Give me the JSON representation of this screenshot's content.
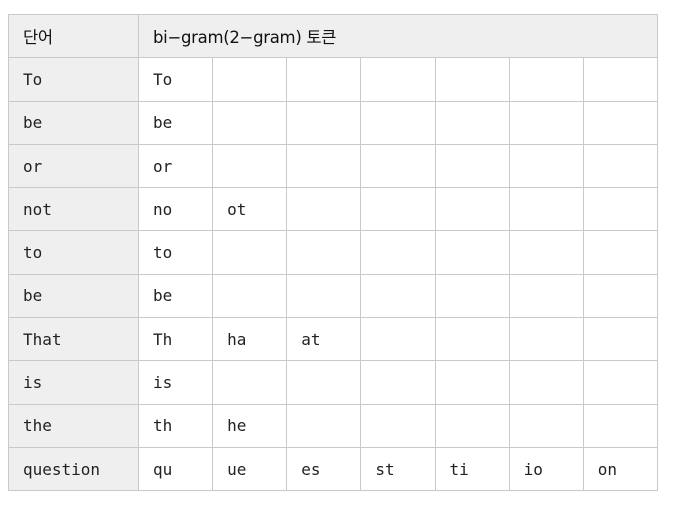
{
  "table": {
    "header": {
      "word_label": "단어",
      "tokens_label": "bi−gram(2−gram) 토큰"
    },
    "rows": [
      {
        "word": "To",
        "tokens": [
          "To",
          "",
          "",
          "",
          "",
          "",
          ""
        ]
      },
      {
        "word": "be",
        "tokens": [
          "be",
          "",
          "",
          "",
          "",
          "",
          ""
        ]
      },
      {
        "word": "or",
        "tokens": [
          "or",
          "",
          "",
          "",
          "",
          "",
          ""
        ]
      },
      {
        "word": "not",
        "tokens": [
          "no",
          "ot",
          "",
          "",
          "",
          "",
          ""
        ]
      },
      {
        "word": "to",
        "tokens": [
          "to",
          "",
          "",
          "",
          "",
          "",
          ""
        ]
      },
      {
        "word": "be",
        "tokens": [
          "be",
          "",
          "",
          "",
          "",
          "",
          ""
        ]
      },
      {
        "word": "That",
        "tokens": [
          "Th",
          "ha",
          "at",
          "",
          "",
          "",
          ""
        ]
      },
      {
        "word": "is",
        "tokens": [
          "is",
          "",
          "",
          "",
          "",
          "",
          ""
        ]
      },
      {
        "word": "the",
        "tokens": [
          "th",
          "he",
          "",
          "",
          "",
          "",
          ""
        ]
      },
      {
        "word": "question",
        "tokens": [
          "qu",
          "ue",
          "es",
          "st",
          "ti",
          "io",
          "on"
        ]
      }
    ]
  }
}
